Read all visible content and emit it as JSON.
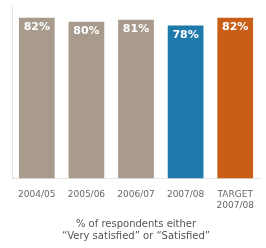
{
  "chart_data": {
    "type": "bar",
    "categories": [
      "2004/05",
      "2005/06",
      "2006/07",
      "2007/08",
      "TARGET\n2007/08"
    ],
    "values": [
      82,
      80,
      81,
      78,
      82
    ],
    "value_labels": [
      "82%",
      "80%",
      "81%",
      "78%",
      "82%"
    ],
    "colors": [
      "#a89a8c",
      "#a89a8c",
      "#a89a8c",
      "#1e7aaa",
      "#c85e18"
    ],
    "xlabel": "% of respondents either\n“Very satisfied” or “Satisfied”",
    "ylim": [
      0,
      88
    ],
    "grid": false,
    "data_labels": true,
    "tick_labels": "x"
  }
}
